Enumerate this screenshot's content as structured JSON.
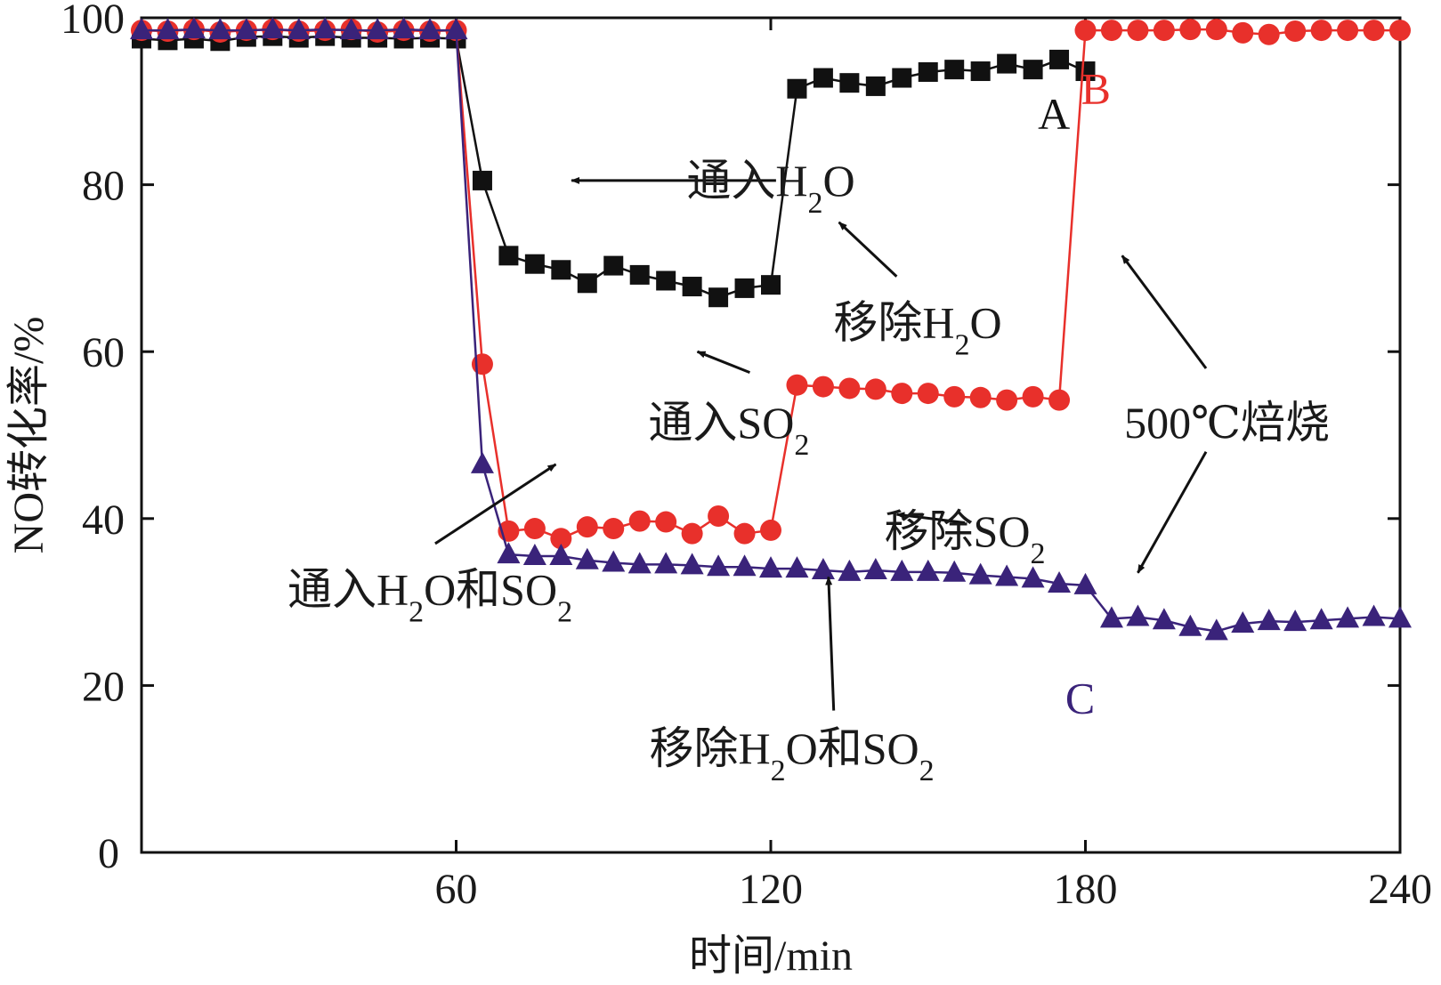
{
  "chart_data": {
    "type": "line",
    "title": "",
    "xlabel": "时间/min",
    "ylabel": "NO转化率/%",
    "xlim": [
      0,
      240
    ],
    "ylim": [
      0,
      100
    ],
    "xticks": [
      0,
      60,
      120,
      180,
      240
    ],
    "yticks": [
      0,
      20,
      40,
      60,
      80,
      100
    ],
    "xtick_labels": [
      "0",
      "60",
      "120",
      "180",
      "240"
    ],
    "ytick_labels": [
      "",
      "20",
      "40",
      "60",
      "80",
      "100"
    ],
    "origin_label": "0",
    "grid": false,
    "series": [
      {
        "name": "A",
        "color": "#111111",
        "marker": "square",
        "x": [
          0,
          5,
          10,
          15,
          20,
          25,
          30,
          35,
          40,
          45,
          50,
          55,
          60,
          65,
          70,
          75,
          80,
          85,
          90,
          95,
          100,
          105,
          110,
          115,
          120,
          125,
          130,
          135,
          140,
          145,
          150,
          155,
          160,
          165,
          170,
          175,
          180
        ],
        "y": [
          97.5,
          97.3,
          97.5,
          97.2,
          97.7,
          97.8,
          97.6,
          97.8,
          97.6,
          97.6,
          97.5,
          97.6,
          97.5,
          80.5,
          71.5,
          70.5,
          69.8,
          68.2,
          70.3,
          69.2,
          68.5,
          67.8,
          66.5,
          67.6,
          68.0,
          91.5,
          92.8,
          92.2,
          91.8,
          92.8,
          93.5,
          93.8,
          93.6,
          94.5,
          93.8,
          95.0,
          93.6
        ]
      },
      {
        "name": "B",
        "color": "#e8302b",
        "marker": "circle",
        "x": [
          0,
          5,
          10,
          15,
          20,
          25,
          30,
          35,
          40,
          45,
          50,
          55,
          60,
          65,
          70,
          75,
          80,
          85,
          90,
          95,
          100,
          105,
          110,
          115,
          120,
          125,
          130,
          135,
          140,
          145,
          150,
          155,
          160,
          165,
          170,
          175,
          180,
          185,
          190,
          195,
          200,
          205,
          210,
          215,
          220,
          225,
          230,
          235,
          240
        ],
        "y": [
          98.5,
          98.4,
          98.6,
          98.3,
          98.5,
          98.6,
          98.4,
          98.5,
          98.6,
          98.3,
          98.5,
          98.4,
          98.5,
          58.5,
          38.5,
          38.8,
          37.6,
          39.0,
          38.8,
          39.7,
          39.6,
          38.2,
          40.3,
          38.2,
          38.6,
          56.0,
          55.8,
          55.6,
          55.5,
          55.0,
          55.0,
          54.6,
          54.5,
          54.2,
          54.6,
          54.2,
          98.5,
          98.5,
          98.5,
          98.5,
          98.6,
          98.6,
          98.2,
          98.0,
          98.4,
          98.5,
          98.5,
          98.5,
          98.5
        ]
      },
      {
        "name": "C",
        "color": "#3a237a",
        "marker": "triangle",
        "x": [
          0,
          5,
          10,
          15,
          20,
          25,
          30,
          35,
          40,
          45,
          50,
          55,
          60,
          65,
          70,
          75,
          80,
          85,
          90,
          95,
          100,
          105,
          110,
          115,
          120,
          125,
          130,
          135,
          140,
          145,
          150,
          155,
          160,
          165,
          170,
          175,
          180,
          185,
          190,
          195,
          200,
          205,
          210,
          215,
          220,
          225,
          230,
          235,
          240
        ],
        "y": [
          98.5,
          98.5,
          98.6,
          98.5,
          98.5,
          98.6,
          98.5,
          98.6,
          98.5,
          98.5,
          98.6,
          98.5,
          98.5,
          46.5,
          35.7,
          35.5,
          35.5,
          35.0,
          34.7,
          34.5,
          34.5,
          34.4,
          34.2,
          34.2,
          34.0,
          34.0,
          33.8,
          33.6,
          33.8,
          33.6,
          33.6,
          33.5,
          33.2,
          33.0,
          32.8,
          32.2,
          32.0,
          28.0,
          28.2,
          27.8,
          27.0,
          26.5,
          27.4,
          27.7,
          27.6,
          27.8,
          28.0,
          28.2,
          28.0
        ]
      }
    ],
    "annotations": [
      {
        "text": "通入H",
        "sub": "2",
        "tail": "O",
        "x": 120,
        "y": 80.5
      },
      {
        "text": "移除H",
        "sub": "2",
        "tail": "O",
        "x": 148,
        "y": 63.5
      },
      {
        "text": "通入SO",
        "sub": "2",
        "tail": "",
        "x": 112,
        "y": 51.5
      },
      {
        "text": "500℃焙烧",
        "sub": "",
        "tail": "",
        "x": 207,
        "y": 51.5
      },
      {
        "text": "移除SO",
        "sub": "2",
        "tail": "",
        "x": 157,
        "y": 38.5
      },
      {
        "text": "通入H",
        "sub": "2",
        "tail": "O和SO",
        "sub2": "2",
        "x": 55,
        "y": 31.5
      },
      {
        "text": "移除H",
        "sub": "2",
        "tail": "O和SO",
        "sub2": "2",
        "x": 124,
        "y": 12.5
      }
    ],
    "arrows": [
      {
        "from": [
          121,
          80.5
        ],
        "to": [
          82,
          80.5
        ]
      },
      {
        "from": [
          144,
          69.0
        ],
        "to": [
          133,
          75.5
        ]
      },
      {
        "from": [
          116,
          57.5
        ],
        "to": [
          106,
          60.0
        ]
      },
      {
        "from": [
          203,
          58.0
        ],
        "to": [
          187,
          71.5
        ]
      },
      {
        "from": [
          203,
          48.0
        ],
        "to": [
          190,
          33.5
        ]
      },
      {
        "from": [
          157,
          39.5
        ],
        "to": [
          144,
          40.5
        ]
      },
      {
        "from": [
          56,
          37.0
        ],
        "to": [
          79,
          46.5
        ]
      },
      {
        "from": [
          132,
          17.0
        ],
        "to": [
          131,
          33.0
        ]
      }
    ],
    "series_labels": [
      {
        "text": "A",
        "color": "#111111",
        "x": 174,
        "y": 88.5
      },
      {
        "text": "B",
        "color": "#e8302b",
        "x": 182,
        "y": 91.5
      },
      {
        "text": "C",
        "color": "#3a237a",
        "x": 179,
        "y": 18.5
      }
    ]
  }
}
